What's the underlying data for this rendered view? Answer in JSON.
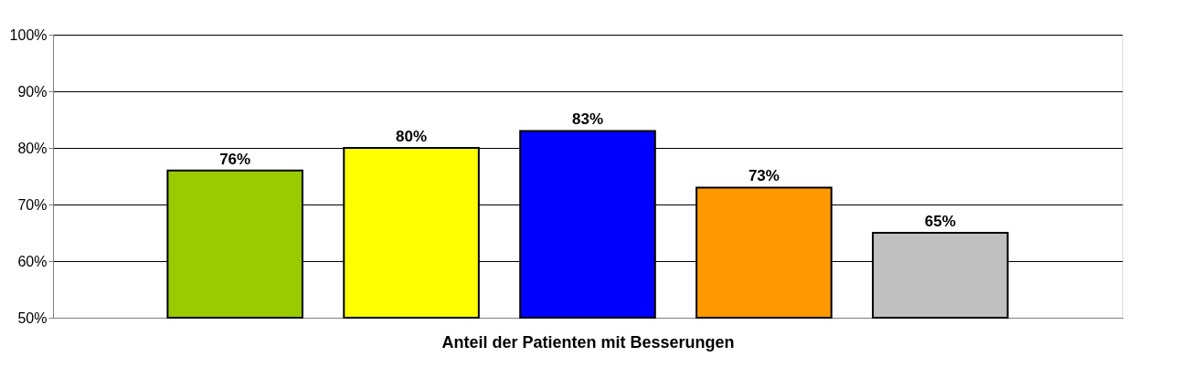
{
  "chart_data": {
    "type": "bar",
    "xlabel": "Anteil der Patienten mit Besserungen",
    "categories": [
      null,
      null,
      null,
      null,
      null
    ],
    "values": [
      76,
      80,
      83,
      73,
      65
    ],
    "colors": [
      "#99cc00",
      "#ffff00",
      "#0000ff",
      "#ff9900",
      "#c0c0c0"
    ],
    "value_labels": [
      "76%",
      "80%",
      "83%",
      "73%",
      "65%"
    ],
    "ylim": [
      50,
      100
    ],
    "yticks": [
      {
        "value": 50,
        "label": "50%"
      },
      {
        "value": 60,
        "label": "60%"
      },
      {
        "value": 70,
        "label": "70%"
      },
      {
        "value": 80,
        "label": "80%"
      },
      {
        "value": 90,
        "label": "90%"
      },
      {
        "value": 100,
        "label": "100%"
      }
    ],
    "grid": "y",
    "tick_labels": "y"
  }
}
